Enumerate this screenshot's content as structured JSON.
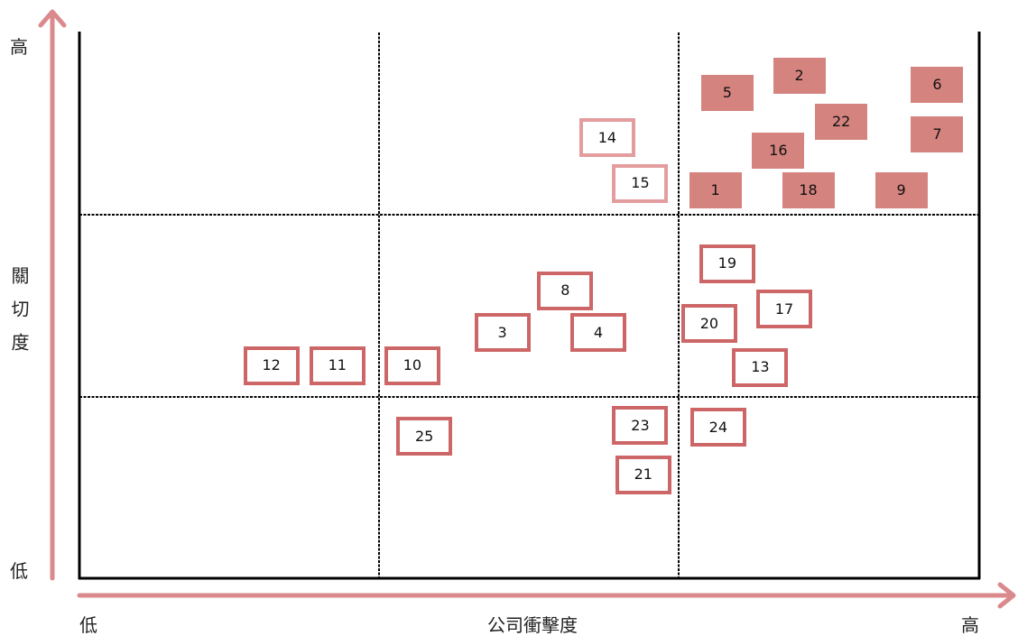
{
  "chart_data": {
    "type": "scatter",
    "xlabel": "公司衝擊度",
    "ylabel": "關切度",
    "x_tick_labels": {
      "low": "低",
      "high": "高"
    },
    "y_tick_labels": {
      "low": "低",
      "high": "高"
    },
    "xlim": [
      0,
      3
    ],
    "ylim": [
      0,
      3
    ],
    "grid": "dashed 3x3",
    "colors": {
      "axis_arrow": "#da8a8c",
      "frame": "#000000",
      "filled": "#d5837f",
      "outline": "#cd6667",
      "outline_light": "#e39d9e"
    },
    "points": [
      {
        "label": "1",
        "x": 2.12,
        "y": 2.13,
        "style": "filled"
      },
      {
        "label": "2",
        "x": 2.4,
        "y": 2.76,
        "style": "filled"
      },
      {
        "label": "3",
        "x": 1.41,
        "y": 1.35,
        "style": "outline"
      },
      {
        "label": "4",
        "x": 1.73,
        "y": 1.35,
        "style": "outline"
      },
      {
        "label": "5",
        "x": 2.16,
        "y": 2.67,
        "style": "filled"
      },
      {
        "label": "6",
        "x": 2.86,
        "y": 2.71,
        "style": "filled"
      },
      {
        "label": "7",
        "x": 2.86,
        "y": 2.44,
        "style": "filled"
      },
      {
        "label": "8",
        "x": 1.62,
        "y": 1.58,
        "style": "outline"
      },
      {
        "label": "9",
        "x": 2.74,
        "y": 2.13,
        "style": "filled"
      },
      {
        "label": "10",
        "x": 1.11,
        "y": 1.17,
        "style": "outline"
      },
      {
        "label": "11",
        "x": 0.86,
        "y": 1.17,
        "style": "outline"
      },
      {
        "label": "12",
        "x": 0.64,
        "y": 1.17,
        "style": "outline"
      },
      {
        "label": "13",
        "x": 2.27,
        "y": 1.16,
        "style": "outline"
      },
      {
        "label": "14",
        "x": 1.76,
        "y": 2.42,
        "style": "outline-light"
      },
      {
        "label": "15",
        "x": 1.87,
        "y": 2.17,
        "style": "outline-light"
      },
      {
        "label": "16",
        "x": 2.33,
        "y": 2.35,
        "style": "filled"
      },
      {
        "label": "17",
        "x": 2.35,
        "y": 1.48,
        "style": "outline"
      },
      {
        "label": "18",
        "x": 2.43,
        "y": 2.13,
        "style": "filled"
      },
      {
        "label": "19",
        "x": 2.16,
        "y": 1.73,
        "style": "outline"
      },
      {
        "label": "20",
        "x": 2.1,
        "y": 1.4,
        "style": "outline"
      },
      {
        "label": "21",
        "x": 1.88,
        "y": 0.57,
        "style": "outline"
      },
      {
        "label": "22",
        "x": 2.54,
        "y": 2.51,
        "style": "filled"
      },
      {
        "label": "23",
        "x": 1.87,
        "y": 0.84,
        "style": "outline"
      },
      {
        "label": "24",
        "x": 2.13,
        "y": 0.83,
        "style": "outline"
      },
      {
        "label": "25",
        "x": 1.15,
        "y": 0.78,
        "style": "outline"
      }
    ]
  }
}
